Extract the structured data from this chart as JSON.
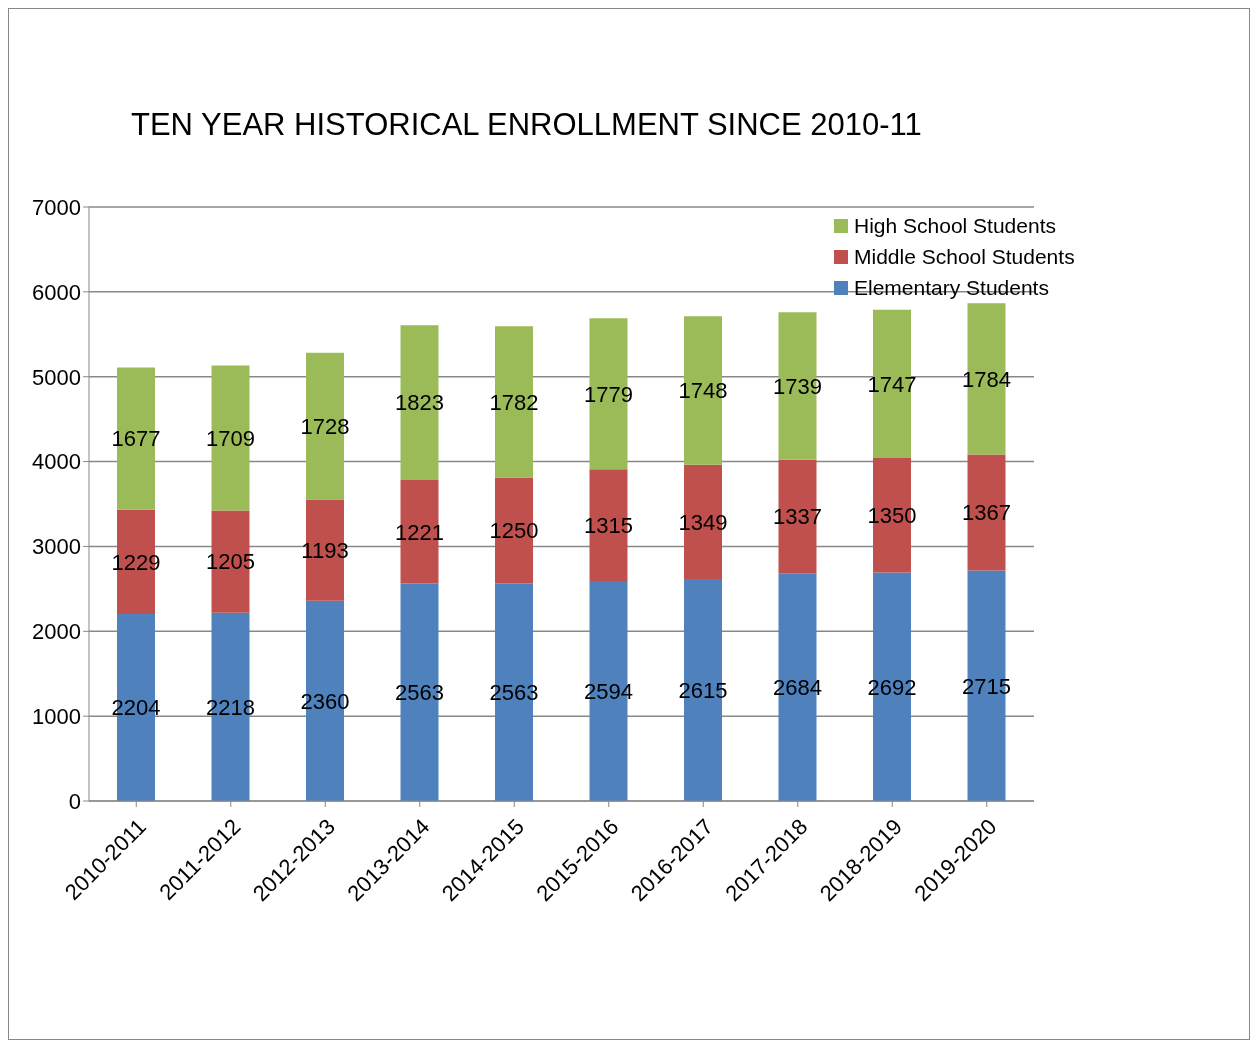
{
  "chart_data": {
    "type": "bar",
    "title": "TEN YEAR HISTORICAL ENROLLMENT SINCE 2010-11",
    "stacked": true,
    "categories": [
      "2010-2011",
      "2011-2012",
      "2012-2013",
      "2013-2014",
      "2014-2015",
      "2015-2016",
      "2016-2017",
      "2017-2018",
      "2018-2019",
      "2019-2020"
    ],
    "series": [
      {
        "name": "Elementary Students",
        "color": "#4f81bd",
        "values": [
          2204,
          2218,
          2360,
          2563,
          2563,
          2594,
          2615,
          2684,
          2692,
          2715
        ]
      },
      {
        "name": "Middle School Students",
        "color": "#c0504d",
        "values": [
          1229,
          1205,
          1193,
          1221,
          1250,
          1315,
          1349,
          1337,
          1350,
          1367
        ]
      },
      {
        "name": "High School Students",
        "color": "#9bbb59",
        "values": [
          1677,
          1709,
          1728,
          1823,
          1782,
          1779,
          1748,
          1739,
          1747,
          1784
        ]
      }
    ],
    "ylim": [
      0,
      7000
    ],
    "yticks": [
      0,
      1000,
      2000,
      3000,
      4000,
      5000,
      6000,
      7000
    ],
    "grid": "y",
    "legend": "top right",
    "data_labels": true
  }
}
